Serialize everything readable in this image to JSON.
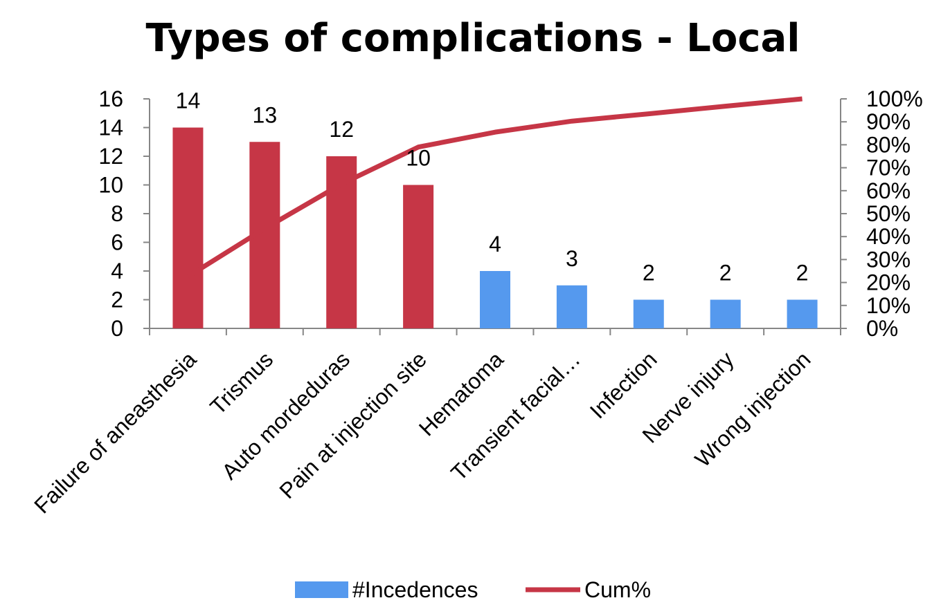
{
  "chart_data": {
    "type": "bar",
    "title": "Types of complications - Local",
    "categories": [
      "Failure of aneasthesia",
      "Trismus",
      "Auto mordeduras",
      "Pain at injection site",
      "Hematoma",
      "Transient facial…",
      "Infection",
      "Nerve injury",
      "Wrong injection"
    ],
    "series": [
      {
        "name": "#Incedences",
        "type": "bar",
        "axis": "left",
        "values": [
          14,
          13,
          12,
          10,
          4,
          3,
          2,
          2,
          2
        ],
        "data_labels": [
          "14",
          "13",
          "12",
          "10",
          "4",
          "3",
          "2",
          "2",
          "2"
        ]
      },
      {
        "name": "Cum%",
        "type": "line",
        "axis": "right",
        "values": [
          22.6,
          43.5,
          62.9,
          79.0,
          85.5,
          90.3,
          93.5,
          96.8,
          100.0
        ]
      }
    ],
    "highlight_count": 4,
    "colors": {
      "bar_highlight": "#c63646",
      "bar_default": "#5599ee",
      "line": "#c63646",
      "axis": "#868686"
    },
    "y_left": {
      "lim": [
        0,
        16
      ],
      "ticks": [
        "0",
        "2",
        "4",
        "6",
        "8",
        "10",
        "12",
        "14",
        "16"
      ]
    },
    "y_right": {
      "lim": [
        0,
        100
      ],
      "ticks": [
        "0%",
        "10%",
        "20%",
        "30%",
        "40%",
        "50%",
        "60%",
        "70%",
        "80%",
        "90%",
        "100%"
      ]
    },
    "grid": false,
    "legend": {
      "position": "bottom",
      "items": [
        "#Incedences",
        "Cum%"
      ]
    }
  }
}
